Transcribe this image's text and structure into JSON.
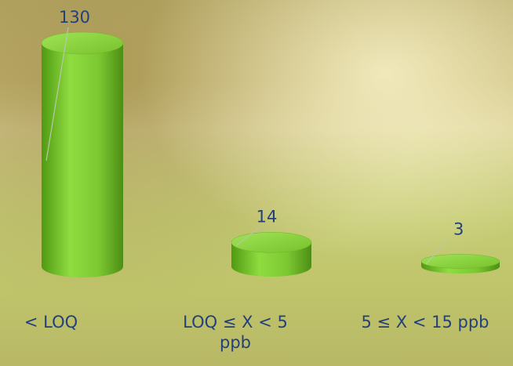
{
  "chart_data": {
    "type": "bar",
    "categories": [
      "< LOQ",
      "LOQ ≤ X < 5 ppb",
      "5 ≤ X < 15 ppb"
    ],
    "values": [
      130,
      14,
      3
    ],
    "color": "#7cc832"
  }
}
